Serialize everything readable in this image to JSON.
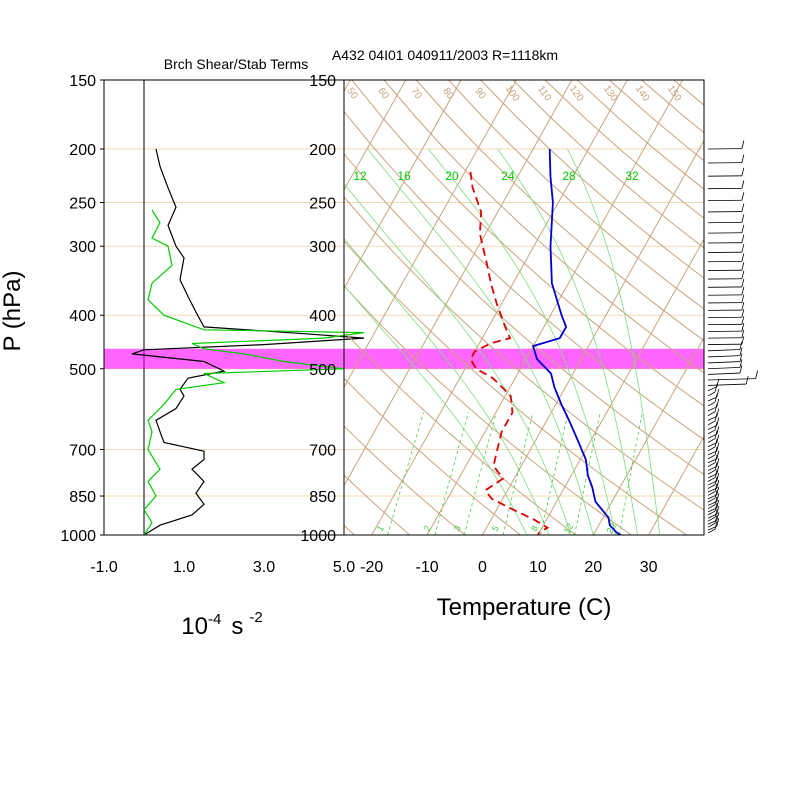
{
  "chart_data": [
    {
      "type": "line",
      "title": "Brch Shear/Stab Terms",
      "xlabel": "10",
      "xlabel_sup": "-4",
      "xlabel_unit": "s",
      "xlabel_unit_sup": "-2",
      "ylabel": "P (hPa)",
      "xlim": [
        -1.0,
        5.0
      ],
      "xticks": [
        "-1.0",
        "1.0",
        "3.0",
        "5.0"
      ],
      "xtick_values": [
        -1.0,
        1.0,
        3.0,
        5.0
      ],
      "yticks": [
        150,
        200,
        250,
        300,
        400,
        500,
        700,
        850,
        1000
      ],
      "ylim": [
        150,
        1000
      ],
      "y_scale": "log",
      "grid": "horizontal",
      "highlight_band_p": [
        460,
        500
      ],
      "highlight_color": "#ff00ff",
      "series": [
        {
          "color": "#000000",
          "points": [
            [
              0.3,
              200
            ],
            [
              0.4,
              215
            ],
            [
              0.6,
              235
            ],
            [
              0.8,
              255
            ],
            [
              0.6,
              275
            ],
            [
              0.8,
              300
            ],
            [
              1.0,
              315
            ],
            [
              0.9,
              345
            ],
            [
              1.1,
              370
            ],
            [
              1.3,
              395
            ],
            [
              1.5,
              420
            ],
            [
              4.0,
              432
            ],
            [
              5.5,
              440
            ],
            [
              3.0,
              452
            ],
            [
              0.0,
              462
            ],
            [
              -0.3,
              470
            ],
            [
              1.5,
              485
            ],
            [
              2.0,
              505
            ],
            [
              1.1,
              520
            ],
            [
              0.9,
              545
            ],
            [
              1.0,
              560
            ],
            [
              0.8,
              590
            ],
            [
              0.3,
              620
            ],
            [
              0.4,
              650
            ],
            [
              0.5,
              680
            ],
            [
              1.5,
              705
            ],
            [
              1.5,
              730
            ],
            [
              1.2,
              760
            ],
            [
              1.5,
              800
            ],
            [
              1.3,
              840
            ],
            [
              1.5,
              880
            ],
            [
              1.2,
              920
            ],
            [
              0.4,
              960
            ],
            [
              0.0,
              1000
            ]
          ]
        },
        {
          "color": "#00cc00",
          "points": [
            [
              0.2,
              258
            ],
            [
              0.4,
              272
            ],
            [
              0.2,
              290
            ],
            [
              0.6,
              300
            ],
            [
              0.7,
              325
            ],
            [
              0.2,
              350
            ],
            [
              0.1,
              375
            ],
            [
              0.5,
              400
            ],
            [
              1.5,
              425
            ],
            [
              5.5,
              430
            ],
            [
              4.5,
              440
            ],
            [
              1.2,
              450
            ],
            [
              1.5,
              460
            ],
            [
              2.5,
              470
            ],
            [
              3.5,
              485
            ],
            [
              5.0,
              500
            ],
            [
              1.5,
              510
            ],
            [
              2.0,
              530
            ],
            [
              0.8,
              545
            ],
            [
              0.5,
              580
            ],
            [
              0.1,
              620
            ],
            [
              0.2,
              650
            ],
            [
              0.1,
              700
            ],
            [
              0.4,
              760
            ],
            [
              0.1,
              800
            ],
            [
              0.3,
              850
            ],
            [
              0.0,
              900
            ],
            [
              0.2,
              950
            ],
            [
              0.0,
              1000
            ]
          ]
        }
      ]
    },
    {
      "type": "line",
      "title": "A432 04I01 040911/2003 R=1118km",
      "xlabel": "Temperature (C)",
      "xlim": [
        -25,
        40
      ],
      "xticks": [
        "-20",
        "-10",
        "0",
        "10",
        "20",
        "30"
      ],
      "xtick_values": [
        -20,
        -10,
        0,
        10,
        20,
        30
      ],
      "yticks": [
        150,
        200,
        250,
        300,
        400,
        500,
        700,
        850,
        1000
      ],
      "ylim": [
        150,
        1000
      ],
      "y_scale": "log",
      "skew_c_per_log_unit": 56,
      "grid": "horizontal",
      "highlight_band_p": [
        460,
        500
      ],
      "highlight_color": "#ff00ff",
      "mixing_ratio_labels": [
        "12",
        "16",
        "20",
        "24",
        "28",
        "32"
      ],
      "mixing_ratio_label_color": "#00cc00",
      "dry_adiabat_labels": [
        "50",
        "60",
        "70",
        "80",
        "90",
        "100",
        "110",
        "120",
        "130",
        "140",
        "150"
      ],
      "bottom_labels": [
        "1",
        "2",
        "3",
        "5",
        "8",
        "12",
        "20"
      ],
      "series": [
        {
          "name": "",
          "color": "#0000cc",
          "style": "solid",
          "points": [
            [
              -27,
              200
            ],
            [
              -24,
              225
            ],
            [
              -21,
              250
            ],
            [
              -17,
              300
            ],
            [
              -13,
              350
            ],
            [
              -8,
              400
            ],
            [
              -6,
              420
            ],
            [
              -6,
              440
            ],
            [
              -10,
              455
            ],
            [
              -8,
              480
            ],
            [
              -4,
              510
            ],
            [
              -2,
              540
            ],
            [
              1,
              580
            ],
            [
              4,
              620
            ],
            [
              8,
              680
            ],
            [
              11,
              730
            ],
            [
              13,
              780
            ],
            [
              15,
              820
            ],
            [
              17,
              870
            ],
            [
              21,
              930
            ],
            [
              22,
              960
            ],
            [
              24,
              990
            ],
            [
              25,
              1000
            ]
          ]
        },
        {
          "name": "",
          "color": "#dd0000",
          "style": "dashed",
          "points": [
            [
              -39,
              220
            ],
            [
              -37,
              235
            ],
            [
              -33,
              260
            ],
            [
              -31,
              285
            ],
            [
              -27,
              320
            ],
            [
              -24,
              350
            ],
            [
              -21,
              380
            ],
            [
              -17,
              420
            ],
            [
              -15,
              440
            ],
            [
              -18,
              450
            ],
            [
              -20,
              465
            ],
            [
              -20,
              480
            ],
            [
              -18,
              500
            ],
            [
              -14,
              520
            ],
            [
              -9,
              560
            ],
            [
              -7,
              600
            ],
            [
              -7,
              650
            ],
            [
              -6,
              700
            ],
            [
              -5,
              750
            ],
            [
              -2,
              790
            ],
            [
              -4,
              830
            ],
            [
              -2,
              860
            ],
            [
              3,
              900
            ],
            [
              8,
              940
            ],
            [
              11,
              970
            ],
            [
              10,
              990
            ],
            [
              10,
              1000
            ]
          ]
        }
      ]
    }
  ],
  "wind_barbs_color": "#000000"
}
